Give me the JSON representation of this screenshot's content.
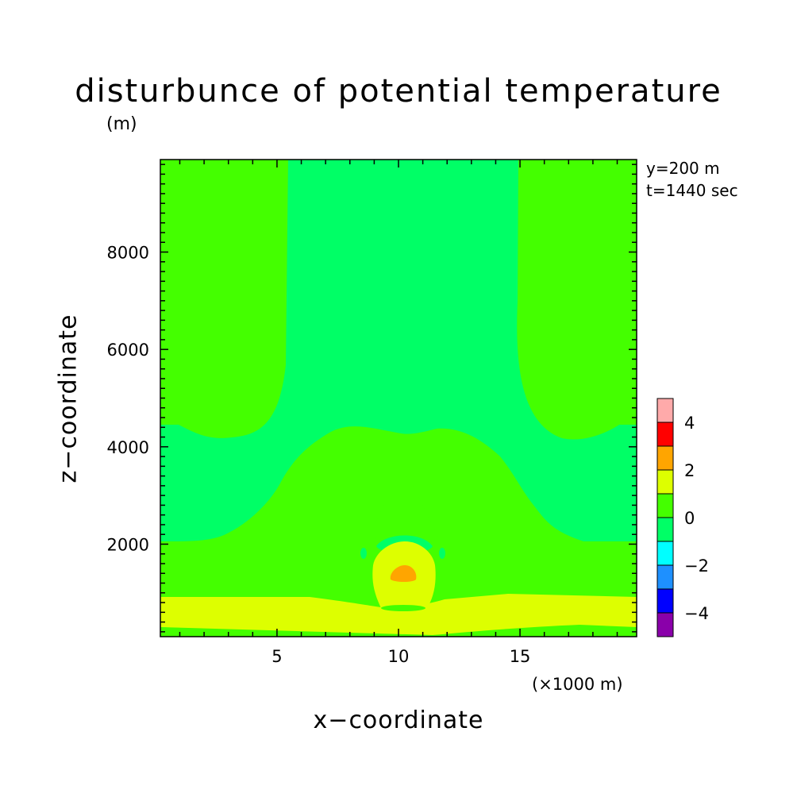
{
  "chart_data": {
    "type": "heatmap",
    "title": "disturbunce of potential temperature",
    "ylabel_unit": "(m)",
    "xlabel": "x−coordinate",
    "ylabel": "z−coordinate",
    "x_unit_note": "(×1000 m)",
    "info": [
      "y=200 m",
      "t=1440 sec"
    ],
    "xlim": [
      0.2,
      19.8
    ],
    "ylim": [
      100,
      9900
    ],
    "xticks": [
      5,
      10,
      15
    ],
    "xticklabels": [
      "5",
      "10",
      "15"
    ],
    "yticks": [
      2000,
      4000,
      6000,
      8000
    ],
    "yticklabels": [
      "2000",
      "4000",
      "6000",
      "8000"
    ],
    "grid": false,
    "colorbar": {
      "levels": [
        -5,
        -4,
        -3,
        -2,
        -1,
        0,
        1,
        2,
        3,
        4,
        5
      ],
      "colors": [
        "#8a00aa",
        "#0000ff",
        "#1e90ff",
        "#00ffff",
        "#00ff66",
        "#44ff00",
        "#ddff00",
        "#ffa500",
        "#ff0000",
        "#ffaaaa"
      ],
      "ticks": [
        4,
        2,
        0,
        -2,
        -4
      ],
      "ticklabels": [
        "4",
        "2",
        "0",
        "−2",
        "−4"
      ]
    },
    "regions": [
      {
        "level": "0 to 1",
        "color": "#44ff00",
        "desc": "upper side columns and lower band"
      },
      {
        "level": "-1 to 0",
        "color": "#00ff66",
        "desc": "central column and mid band"
      },
      {
        "level": "1 to 2",
        "color": "#ddff00",
        "desc": "near-surface band and bubble"
      },
      {
        "level": "2 to 3",
        "color": "#ffa500",
        "desc": "core near x=10, z=1300"
      }
    ]
  }
}
